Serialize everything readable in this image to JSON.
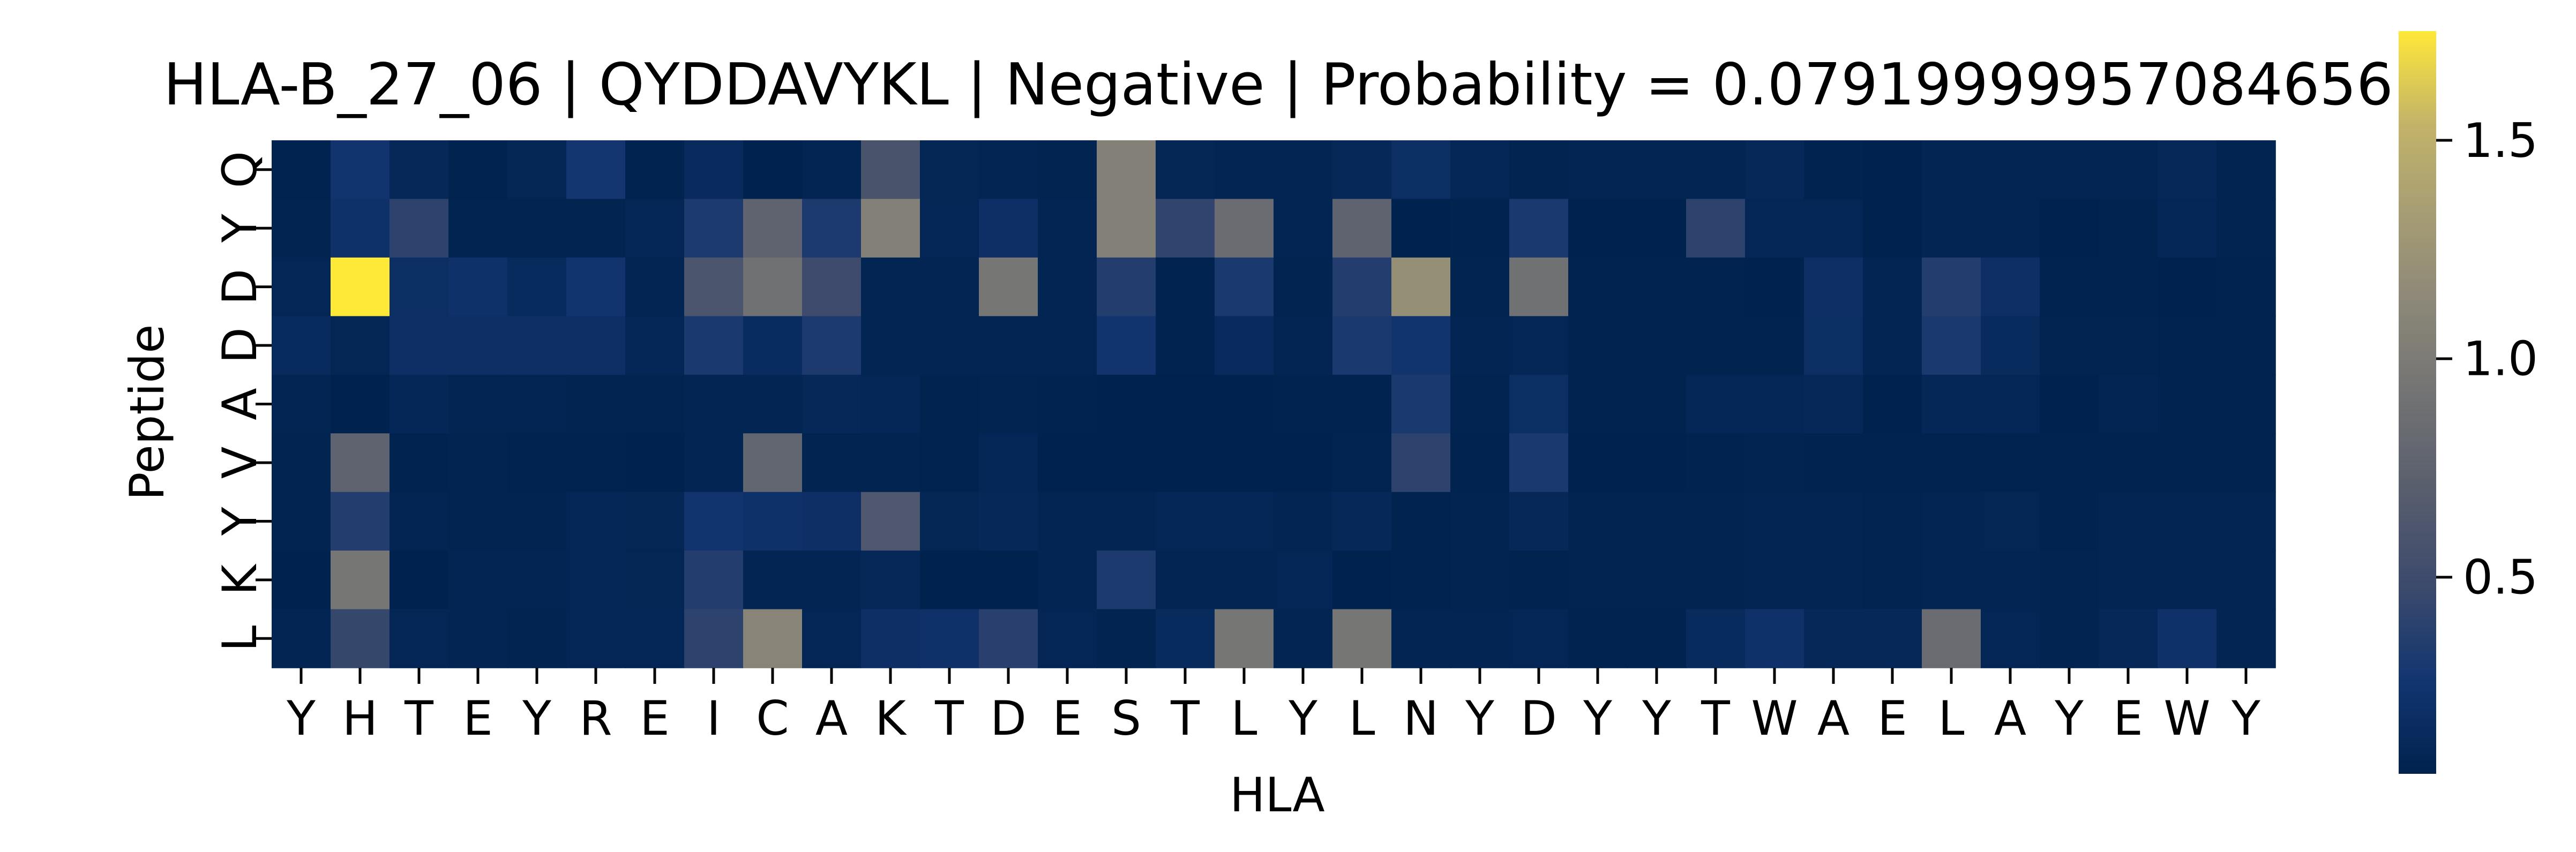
{
  "chart_data": {
    "type": "heatmap",
    "title": "HLA-B_27_06 | QYDDAVYKL | Negative | Probability = 0.07919999957084656",
    "xlabel": "HLA",
    "ylabel": "Peptide",
    "x_categories": [
      "Y",
      "H",
      "T",
      "E",
      "Y",
      "R",
      "E",
      "I",
      "C",
      "A",
      "K",
      "T",
      "D",
      "E",
      "S",
      "T",
      "L",
      "Y",
      "L",
      "N",
      "Y",
      "D",
      "Y",
      "Y",
      "T",
      "W",
      "A",
      "E",
      "L",
      "A",
      "Y",
      "E",
      "W",
      "Y"
    ],
    "y_categories": [
      "Q",
      "Y",
      "D",
      "D",
      "A",
      "V",
      "Y",
      "K",
      "L"
    ],
    "colormap": "cividis",
    "colorbar": {
      "min": 0.05,
      "max": 1.75,
      "ticks": [
        0.5,
        1.0,
        1.5
      ],
      "tick_labels": [
        "0.5",
        "1.0",
        "1.5"
      ]
    },
    "grid": false,
    "values": [
      [
        0.06,
        0.25,
        0.12,
        0.06,
        0.09,
        0.27,
        0.06,
        0.14,
        0.03,
        0.08,
        0.58,
        0.09,
        0.08,
        0.07,
        1.05,
        0.09,
        0.08,
        0.08,
        0.12,
        0.18,
        0.1,
        0.07,
        0.08,
        0.08,
        0.08,
        0.12,
        0.06,
        0.04,
        0.08,
        0.08,
        0.08,
        0.08,
        0.12,
        0.07
      ],
      [
        0.07,
        0.22,
        0.4,
        0.07,
        0.07,
        0.07,
        0.1,
        0.32,
        0.75,
        0.32,
        1.05,
        0.1,
        0.2,
        0.08,
        1.05,
        0.42,
        0.85,
        0.08,
        0.75,
        0.03,
        0.06,
        0.3,
        0.05,
        0.05,
        0.4,
        0.1,
        0.1,
        0.05,
        0.08,
        0.08,
        0.05,
        0.06,
        0.1,
        0.07
      ],
      [
        0.1,
        1.75,
        0.18,
        0.22,
        0.15,
        0.25,
        0.08,
        0.6,
        0.9,
        0.5,
        0.08,
        0.08,
        0.95,
        0.08,
        0.35,
        0.06,
        0.3,
        0.07,
        0.35,
        1.2,
        0.07,
        0.9,
        0.06,
        0.06,
        0.06,
        0.05,
        0.2,
        0.08,
        0.35,
        0.2,
        0.06,
        0.06,
        0.05,
        0.06
      ],
      [
        0.15,
        0.09,
        0.2,
        0.2,
        0.2,
        0.2,
        0.1,
        0.3,
        0.16,
        0.32,
        0.08,
        0.08,
        0.08,
        0.08,
        0.25,
        0.06,
        0.14,
        0.08,
        0.3,
        0.25,
        0.08,
        0.1,
        0.06,
        0.06,
        0.06,
        0.06,
        0.18,
        0.08,
        0.3,
        0.15,
        0.07,
        0.07,
        0.06,
        0.06
      ],
      [
        0.08,
        0.04,
        0.11,
        0.08,
        0.08,
        0.07,
        0.07,
        0.08,
        0.08,
        0.12,
        0.1,
        0.06,
        0.07,
        0.06,
        0.04,
        0.05,
        0.05,
        0.06,
        0.06,
        0.3,
        0.07,
        0.18,
        0.06,
        0.06,
        0.1,
        0.1,
        0.12,
        0.05,
        0.11,
        0.1,
        0.05,
        0.08,
        0.06,
        0.06
      ],
      [
        0.07,
        0.75,
        0.06,
        0.07,
        0.06,
        0.06,
        0.05,
        0.08,
        0.78,
        0.07,
        0.07,
        0.06,
        0.1,
        0.05,
        0.05,
        0.05,
        0.05,
        0.05,
        0.07,
        0.4,
        0.06,
        0.3,
        0.05,
        0.05,
        0.06,
        0.07,
        0.06,
        0.06,
        0.06,
        0.06,
        0.06,
        0.06,
        0.06,
        0.06
      ],
      [
        0.07,
        0.35,
        0.08,
        0.07,
        0.07,
        0.1,
        0.09,
        0.25,
        0.22,
        0.2,
        0.62,
        0.09,
        0.12,
        0.08,
        0.08,
        0.1,
        0.1,
        0.08,
        0.12,
        0.06,
        0.07,
        0.12,
        0.07,
        0.07,
        0.07,
        0.08,
        0.08,
        0.07,
        0.08,
        0.09,
        0.06,
        0.08,
        0.08,
        0.08
      ],
      [
        0.05,
        0.95,
        0.05,
        0.08,
        0.08,
        0.1,
        0.09,
        0.35,
        0.08,
        0.08,
        0.12,
        0.05,
        0.05,
        0.08,
        0.32,
        0.08,
        0.08,
        0.1,
        0.05,
        0.06,
        0.07,
        0.06,
        0.07,
        0.07,
        0.07,
        0.08,
        0.08,
        0.07,
        0.08,
        0.08,
        0.07,
        0.08,
        0.08,
        0.08
      ],
      [
        0.08,
        0.45,
        0.1,
        0.08,
        0.07,
        0.1,
        0.1,
        0.4,
        1.1,
        0.1,
        0.2,
        0.22,
        0.38,
        0.1,
        0.07,
        0.15,
        0.95,
        0.08,
        0.95,
        0.08,
        0.08,
        0.1,
        0.06,
        0.06,
        0.15,
        0.22,
        0.12,
        0.12,
        0.85,
        0.1,
        0.07,
        0.12,
        0.22,
        0.08
      ]
    ]
  }
}
